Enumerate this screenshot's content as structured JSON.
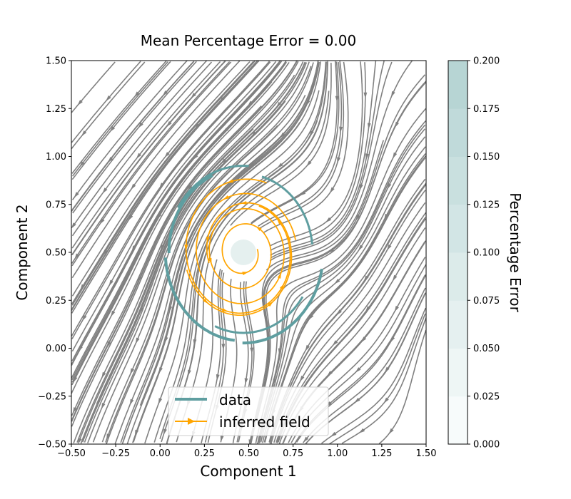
{
  "chart_data": {
    "type": "streamplot",
    "title": "Mean Percentage Error = 0.00",
    "xlabel": "Component 1",
    "ylabel": "Component 2",
    "xlim": [
      -0.5,
      1.5
    ],
    "ylim": [
      -0.5,
      1.5
    ],
    "xticks": [
      "−0.50",
      "−0.25",
      "0.00",
      "0.25",
      "0.50",
      "0.75",
      "1.00",
      "1.25",
      "1.50"
    ],
    "yticks": [
      "−0.50",
      "−0.25",
      "0.00",
      "0.25",
      "0.50",
      "0.75",
      "1.00",
      "1.25",
      "1.50"
    ],
    "xtick_values": [
      -0.5,
      -0.25,
      0,
      0.25,
      0.5,
      0.75,
      1.0,
      1.25,
      1.5
    ],
    "ytick_values": [
      -0.5,
      -0.25,
      0,
      0.25,
      0.5,
      0.75,
      1.0,
      1.25,
      1.5
    ],
    "grid": false,
    "legend_position": "lower-center",
    "series": [
      {
        "name": "data",
        "color": "#5f9ea0",
        "kind": "trajectory"
      },
      {
        "name": "inferred field",
        "color": "#ffa500",
        "kind": "streamlines"
      }
    ],
    "background_field_color": "#808080",
    "spiral_center": [
      0.47,
      0.5
    ],
    "colorbar": {
      "label": "Percentage Error",
      "range": [
        0,
        0.2
      ],
      "ticks": [
        "0.000",
        "0.025",
        "0.050",
        "0.075",
        "0.100",
        "0.125",
        "0.150",
        "0.175",
        "0.200"
      ],
      "tick_values": [
        0,
        0.025,
        0.05,
        0.075,
        0.1,
        0.125,
        0.15,
        0.175,
        0.2
      ],
      "color_low": "#f7fbfb",
      "color_high": "#b7d5d4"
    }
  }
}
